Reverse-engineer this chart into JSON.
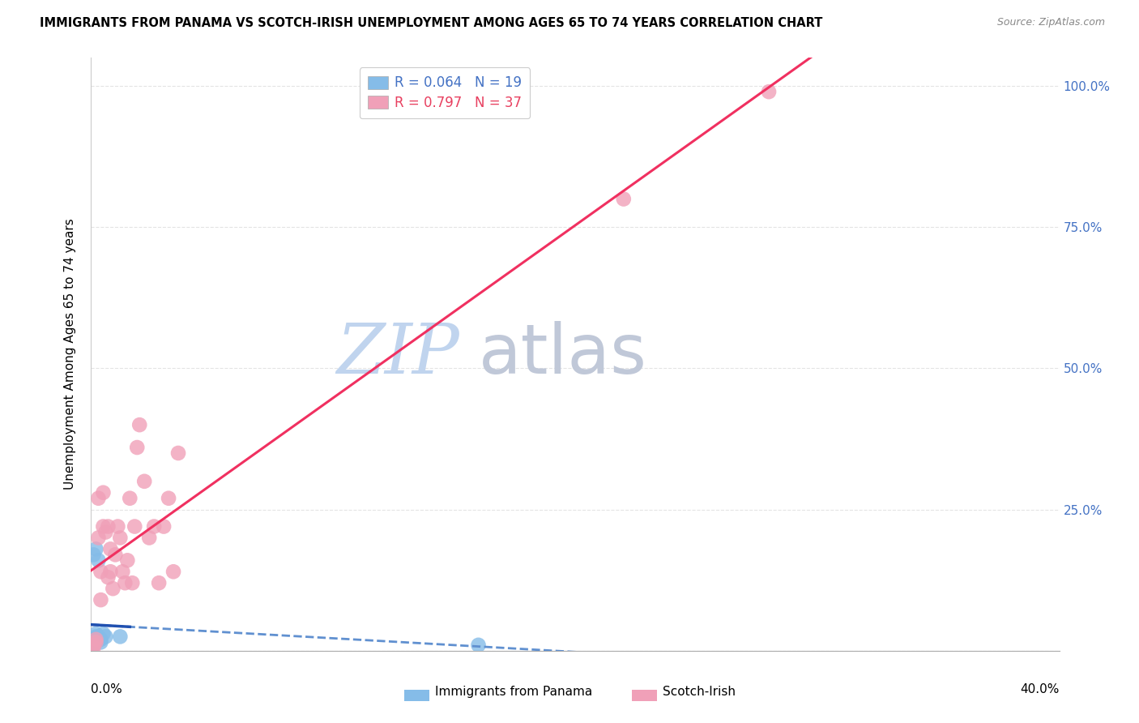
{
  "title": "IMMIGRANTS FROM PANAMA VS SCOTCH-IRISH UNEMPLOYMENT AMONG AGES 65 TO 74 YEARS CORRELATION CHART",
  "source": "Source: ZipAtlas.com",
  "ylabel": "Unemployment Among Ages 65 to 74 years",
  "legend_entry1": "R = 0.064   N = 19",
  "legend_entry2": "R = 0.797   N = 37",
  "legend_label1": "Immigrants from Panama",
  "legend_label2": "Scotch-Irish",
  "color_panama": "#85BCE8",
  "color_scotch": "#F0A0B8",
  "line_color_panama_solid": "#2050B0",
  "line_color_panama_dashed": "#6090D0",
  "line_color_scotch": "#F03060",
  "legend_color1": "#4472C4",
  "legend_color2": "#E84060",
  "watermark_color_zip": "#C0D4EE",
  "watermark_color_atlas": "#C0C8D8",
  "right_axis_color": "#4472C4",
  "grid_color": "#E4E4E4",
  "panama_x": [
    0.001,
    0.002,
    0.001,
    0.002,
    0.003,
    0.001,
    0.002,
    0.003,
    0.004,
    0.002,
    0.003,
    0.001,
    0.002,
    0.003,
    0.004,
    0.005,
    0.006,
    0.012,
    0.16
  ],
  "panama_y": [
    0.01,
    0.02,
    0.015,
    0.025,
    0.02,
    0.01,
    0.015,
    0.02,
    0.015,
    0.03,
    0.025,
    0.17,
    0.18,
    0.16,
    0.02,
    0.03,
    0.025,
    0.025,
    0.01
  ],
  "scotch_x": [
    0.001,
    0.002,
    0.001,
    0.002,
    0.003,
    0.003,
    0.004,
    0.004,
    0.005,
    0.005,
    0.006,
    0.007,
    0.007,
    0.008,
    0.008,
    0.009,
    0.01,
    0.011,
    0.012,
    0.013,
    0.014,
    0.015,
    0.016,
    0.017,
    0.018,
    0.019,
    0.02,
    0.022,
    0.024,
    0.026,
    0.028,
    0.03,
    0.032,
    0.034,
    0.036,
    0.22,
    0.28
  ],
  "scotch_y": [
    0.01,
    0.015,
    0.005,
    0.02,
    0.27,
    0.2,
    0.09,
    0.14,
    0.28,
    0.22,
    0.21,
    0.22,
    0.13,
    0.18,
    0.14,
    0.11,
    0.17,
    0.22,
    0.2,
    0.14,
    0.12,
    0.16,
    0.27,
    0.12,
    0.22,
    0.36,
    0.4,
    0.3,
    0.2,
    0.22,
    0.12,
    0.22,
    0.27,
    0.14,
    0.35,
    0.8,
    0.99
  ],
  "xlim": [
    0.0,
    0.4
  ],
  "ylim": [
    0.0,
    1.05
  ],
  "yticks": [
    0.0,
    0.25,
    0.5,
    0.75,
    1.0
  ],
  "ytick_labels_right": [
    "",
    "25.0%",
    "50.0%",
    "75.0%",
    "100.0%"
  ]
}
